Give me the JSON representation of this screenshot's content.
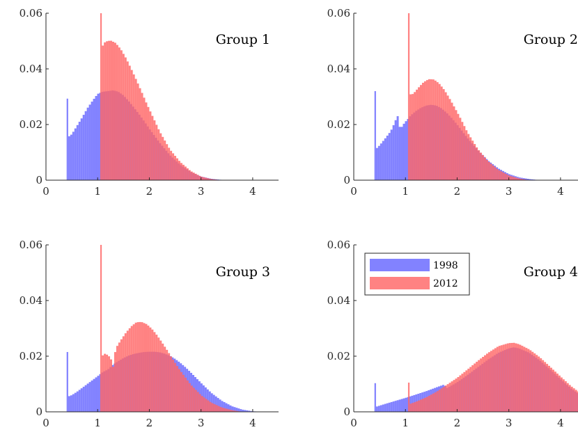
{
  "chart_data": [
    {
      "type": "histogram",
      "title": "Group 1",
      "xlim": [
        0,
        4.5
      ],
      "ylim": [
        0,
        0.06
      ],
      "x_ticks": [
        "0",
        "1",
        "2",
        "3",
        "4"
      ],
      "y_ticks": [
        "0",
        "0.02",
        "0.04",
        "0.06"
      ],
      "grid": false,
      "series": [
        {
          "name": "1998",
          "color": "#6666ff",
          "points": [
            [
              0.4,
              0.0293
            ],
            [
              0.43,
              0.0155
            ],
            [
              0.5,
              0.0165
            ],
            [
              0.6,
              0.0195
            ],
            [
              0.7,
              0.0225
            ],
            [
              0.8,
              0.0258
            ],
            [
              0.9,
              0.0285
            ],
            [
              1.0,
              0.031
            ],
            [
              1.1,
              0.0318
            ],
            [
              1.2,
              0.032
            ],
            [
              1.3,
              0.0323
            ],
            [
              1.4,
              0.0318
            ],
            [
              1.5,
              0.0305
            ],
            [
              1.6,
              0.0285
            ],
            [
              1.7,
              0.0262
            ],
            [
              1.8,
              0.0238
            ],
            [
              1.9,
              0.0212
            ],
            [
              2.0,
              0.0185
            ],
            [
              2.2,
              0.0135
            ],
            [
              2.4,
              0.009
            ],
            [
              2.6,
              0.0055
            ],
            [
              2.8,
              0.003
            ],
            [
              3.0,
              0.0013
            ],
            [
              3.2,
              0.0005
            ],
            [
              3.4,
              0.0001
            ],
            [
              3.6,
              0.0
            ]
          ]
        },
        {
          "name": "2012",
          "color": "#ff6666",
          "points": [
            [
              1.05,
              0.06
            ],
            [
              1.08,
              0.0478
            ],
            [
              1.15,
              0.0498
            ],
            [
              1.25,
              0.0502
            ],
            [
              1.35,
              0.0493
            ],
            [
              1.45,
              0.047
            ],
            [
              1.55,
              0.0438
            ],
            [
              1.65,
              0.04
            ],
            [
              1.75,
              0.036
            ],
            [
              1.85,
              0.0318
            ],
            [
              1.95,
              0.0275
            ],
            [
              2.05,
              0.0235
            ],
            [
              2.2,
              0.0175
            ],
            [
              2.4,
              0.011
            ],
            [
              2.6,
              0.0065
            ],
            [
              2.8,
              0.0033
            ],
            [
              3.0,
              0.0013
            ],
            [
              3.2,
              0.0004
            ],
            [
              3.4,
              0.0
            ]
          ]
        }
      ]
    },
    {
      "type": "histogram",
      "title": "Group 2",
      "xlim": [
        0,
        4.5
      ],
      "ylim": [
        0,
        0.06
      ],
      "x_ticks": [
        "0",
        "1",
        "2",
        "3",
        "4"
      ],
      "y_ticks": [
        "0",
        "0.02",
        "0.04",
        "0.06"
      ],
      "grid": false,
      "series": [
        {
          "name": "1998",
          "color": "#6666ff",
          "points": [
            [
              0.4,
              0.032
            ],
            [
              0.43,
              0.0112
            ],
            [
              0.5,
              0.0125
            ],
            [
              0.6,
              0.0148
            ],
            [
              0.7,
              0.0172
            ],
            [
              0.75,
              0.0188
            ],
            [
              0.8,
              0.0212
            ],
            [
              0.85,
              0.023
            ],
            [
              0.9,
              0.0182
            ],
            [
              0.95,
              0.0198
            ],
            [
              1.0,
              0.021
            ],
            [
              1.05,
              0.022
            ],
            [
              1.1,
              0.0232
            ],
            [
              1.2,
              0.0248
            ],
            [
              1.3,
              0.026
            ],
            [
              1.4,
              0.0268
            ],
            [
              1.5,
              0.0271
            ],
            [
              1.6,
              0.0268
            ],
            [
              1.7,
              0.0258
            ],
            [
              1.8,
              0.0242
            ],
            [
              1.9,
              0.0222
            ],
            [
              2.0,
              0.02
            ],
            [
              2.2,
              0.0152
            ],
            [
              2.4,
              0.0108
            ],
            [
              2.6,
              0.007
            ],
            [
              2.8,
              0.0042
            ],
            [
              3.0,
              0.0022
            ],
            [
              3.2,
              0.001
            ],
            [
              3.4,
              0.0004
            ],
            [
              3.6,
              0.0
            ]
          ]
        },
        {
          "name": "2012",
          "color": "#ff6666",
          "points": [
            [
              1.05,
              0.06
            ],
            [
              1.08,
              0.0308
            ],
            [
              1.15,
              0.031
            ],
            [
              1.25,
              0.0332
            ],
            [
              1.35,
              0.0352
            ],
            [
              1.45,
              0.0363
            ],
            [
              1.55,
              0.0362
            ],
            [
              1.65,
              0.0348
            ],
            [
              1.75,
              0.0325
            ],
            [
              1.85,
              0.0295
            ],
            [
              1.95,
              0.0262
            ],
            [
              2.05,
              0.0228
            ],
            [
              2.2,
              0.0172
            ],
            [
              2.4,
              0.0112
            ],
            [
              2.6,
              0.0068
            ],
            [
              2.8,
              0.0037
            ],
            [
              3.0,
              0.0017
            ],
            [
              3.2,
              0.0006
            ],
            [
              3.4,
              0.0
            ]
          ]
        }
      ]
    },
    {
      "type": "histogram",
      "title": "Group 3",
      "xlim": [
        0,
        4.5
      ],
      "ylim": [
        0,
        0.06
      ],
      "x_ticks": [
        "0",
        "1",
        "2",
        "3",
        "4"
      ],
      "y_ticks": [
        "0",
        "0.02",
        "0.04",
        "0.06"
      ],
      "grid": false,
      "series": [
        {
          "name": "1998",
          "color": "#6666ff",
          "points": [
            [
              0.4,
              0.0215
            ],
            [
              0.43,
              0.0055
            ],
            [
              0.5,
              0.006
            ],
            [
              0.6,
              0.0072
            ],
            [
              0.7,
              0.0086
            ],
            [
              0.8,
              0.01
            ],
            [
              0.9,
              0.0114
            ],
            [
              1.0,
              0.0128
            ],
            [
              1.1,
              0.0143
            ],
            [
              1.2,
              0.0152
            ],
            [
              1.3,
              0.017
            ],
            [
              1.4,
              0.0182
            ],
            [
              1.5,
              0.0193
            ],
            [
              1.6,
              0.0202
            ],
            [
              1.7,
              0.0208
            ],
            [
              1.8,
              0.0212
            ],
            [
              1.9,
              0.0215
            ],
            [
              2.0,
              0.0216
            ],
            [
              2.1,
              0.0216
            ],
            [
              2.2,
              0.0214
            ],
            [
              2.3,
              0.0209
            ],
            [
              2.4,
              0.0201
            ],
            [
              2.5,
              0.019
            ],
            [
              2.6,
              0.0176
            ],
            [
              2.7,
              0.016
            ],
            [
              2.8,
              0.0142
            ],
            [
              3.0,
              0.0104
            ],
            [
              3.2,
              0.0068
            ],
            [
              3.4,
              0.004
            ],
            [
              3.6,
              0.002
            ],
            [
              3.8,
              0.0008
            ],
            [
              4.0,
              0.0002
            ],
            [
              4.2,
              0.0
            ]
          ]
        },
        {
          "name": "2012",
          "color": "#ff6666",
          "points": [
            [
              1.05,
              0.06
            ],
            [
              1.08,
              0.02
            ],
            [
              1.15,
              0.021
            ],
            [
              1.25,
              0.0195
            ],
            [
              1.3,
              0.0162
            ],
            [
              1.35,
              0.0228
            ],
            [
              1.45,
              0.0258
            ],
            [
              1.55,
              0.0285
            ],
            [
              1.65,
              0.0307
            ],
            [
              1.75,
              0.0322
            ],
            [
              1.85,
              0.0323
            ],
            [
              1.95,
              0.0315
            ],
            [
              2.05,
              0.0298
            ],
            [
              2.15,
              0.0275
            ],
            [
              2.25,
              0.0248
            ],
            [
              2.35,
              0.022
            ],
            [
              2.45,
              0.019
            ],
            [
              2.6,
              0.0148
            ],
            [
              2.8,
              0.0098
            ],
            [
              3.0,
              0.006
            ],
            [
              3.2,
              0.0033
            ],
            [
              3.4,
              0.0016
            ],
            [
              3.6,
              0.0006
            ],
            [
              3.8,
              0.0
            ]
          ]
        }
      ]
    },
    {
      "type": "histogram",
      "title": "Group 4",
      "xlim": [
        0,
        4.5
      ],
      "ylim": [
        0,
        0.06
      ],
      "x_ticks": [
        "0",
        "1",
        "2",
        "3",
        "4"
      ],
      "y_ticks": [
        "0",
        "0.02",
        "0.04",
        "0.06"
      ],
      "grid": false,
      "legend": {
        "placement": "top-left"
      },
      "series": [
        {
          "name": "1998",
          "color": "#6666ff",
          "points": [
            [
              0.4,
              0.0103
            ],
            [
              0.43,
              0.0018
            ],
            [
              0.6,
              0.0028
            ],
            [
              0.8,
              0.0039
            ],
            [
              1.0,
              0.005
            ],
            [
              1.2,
              0.0062
            ],
            [
              1.4,
              0.0074
            ],
            [
              1.6,
              0.0088
            ],
            [
              1.75,
              0.0098
            ],
            [
              1.8,
              0.0085
            ],
            [
              2.0,
              0.0106
            ],
            [
              2.2,
              0.0132
            ],
            [
              2.4,
              0.016
            ],
            [
              2.6,
              0.0188
            ],
            [
              2.8,
              0.0212
            ],
            [
              3.0,
              0.0228
            ],
            [
              3.1,
              0.0232
            ],
            [
              3.2,
              0.0228
            ],
            [
              3.4,
              0.0212
            ],
            [
              3.6,
              0.0185
            ],
            [
              3.8,
              0.0152
            ],
            [
              4.0,
              0.0118
            ],
            [
              4.2,
              0.0085
            ],
            [
              4.4,
              0.0058
            ],
            [
              4.5,
              0.0048
            ]
          ]
        },
        {
          "name": "2012",
          "color": "#ff6666",
          "points": [
            [
              1.05,
              0.0105
            ],
            [
              1.08,
              0.0028
            ],
            [
              1.2,
              0.0036
            ],
            [
              1.4,
              0.0052
            ],
            [
              1.6,
              0.0072
            ],
            [
              1.8,
              0.0097
            ],
            [
              2.0,
              0.0122
            ],
            [
              2.2,
              0.0152
            ],
            [
              2.4,
              0.0183
            ],
            [
              2.6,
              0.0212
            ],
            [
              2.8,
              0.0236
            ],
            [
              3.0,
              0.0247
            ],
            [
              3.1,
              0.0248
            ],
            [
              3.2,
              0.0243
            ],
            [
              3.4,
              0.0224
            ],
            [
              3.6,
              0.0196
            ],
            [
              3.8,
              0.0162
            ],
            [
              4.0,
              0.0127
            ],
            [
              4.2,
              0.0093
            ],
            [
              4.4,
              0.0065
            ],
            [
              4.5,
              0.0054
            ]
          ]
        }
      ]
    }
  ]
}
